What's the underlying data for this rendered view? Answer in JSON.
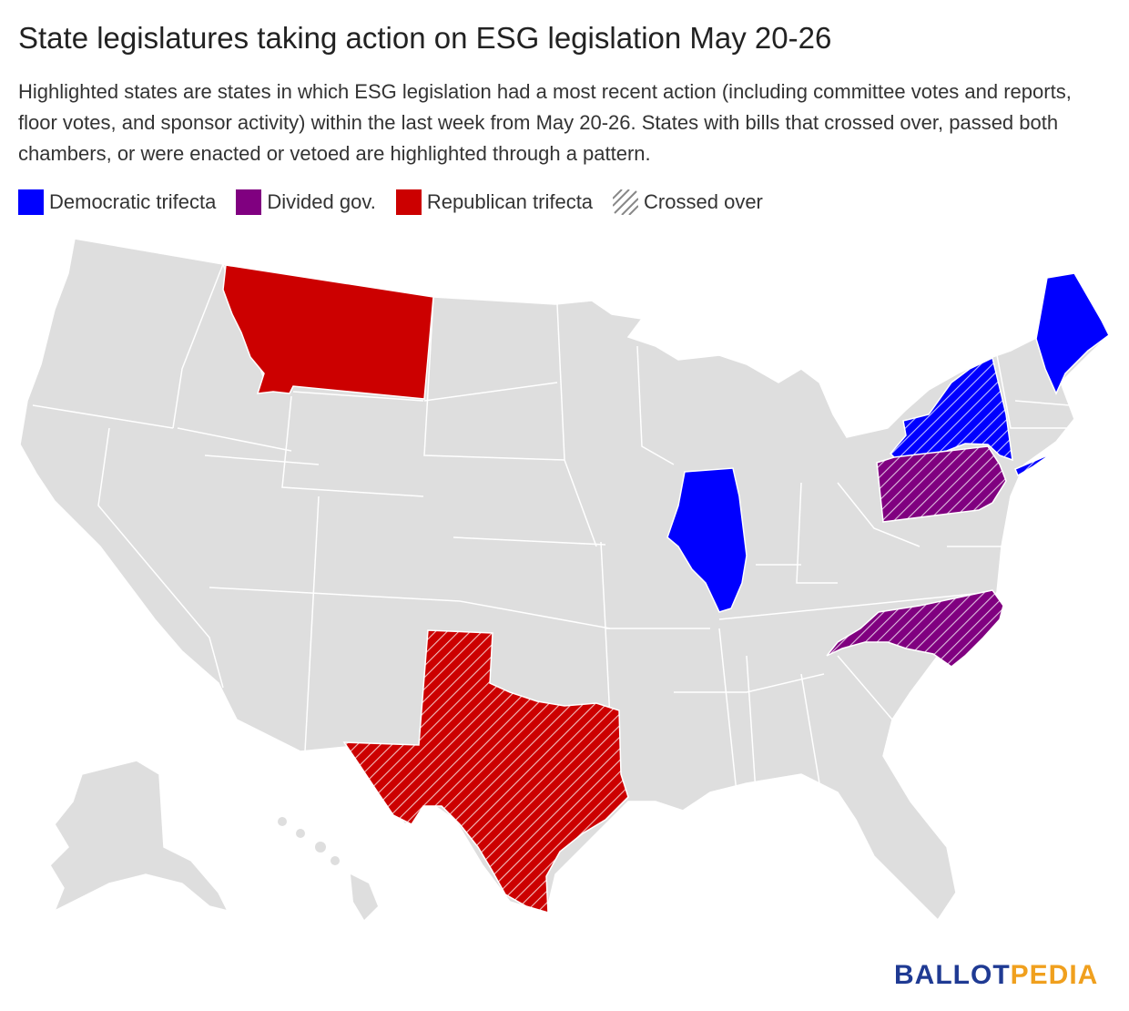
{
  "title": "State legislatures taking action on ESG legislation May 20-26",
  "subtitle": "Highlighted states are states in which ESG legislation had a most recent action (including committee votes and reports, floor votes, and sponsor activity) within the last week from May 20-26. States with bills that crossed over, passed both chambers, or were enacted or vetoed are highlighted through a pattern.",
  "legend": [
    {
      "label": "Democratic trifecta",
      "color": "#0000ff"
    },
    {
      "label": "Divided gov.",
      "color": "#800080"
    },
    {
      "label": "Republican trifecta",
      "color": "#cc0000"
    },
    {
      "label": "Crossed over",
      "pattern": "hatched"
    }
  ],
  "colors": {
    "base": "#dedede",
    "border": "#ffffff",
    "democratic": "#0000ff",
    "divided": "#800080",
    "republican": "#cc0000"
  },
  "highlighted_states": [
    {
      "state": "Montana",
      "status": "Republican trifecta",
      "crossed_over": false
    },
    {
      "state": "Texas",
      "status": "Republican trifecta",
      "crossed_over": true
    },
    {
      "state": "Illinois",
      "status": "Democratic trifecta",
      "crossed_over": false
    },
    {
      "state": "Maine",
      "status": "Democratic trifecta",
      "crossed_over": false
    },
    {
      "state": "New York",
      "status": "Democratic trifecta",
      "crossed_over": true
    },
    {
      "state": "Pennsylvania",
      "status": "Divided gov.",
      "crossed_over": true
    },
    {
      "state": "North Carolina",
      "status": "Divided gov.",
      "crossed_over": true
    }
  ],
  "brand": {
    "part1": "BALLOT",
    "part2": "PEDIA"
  }
}
